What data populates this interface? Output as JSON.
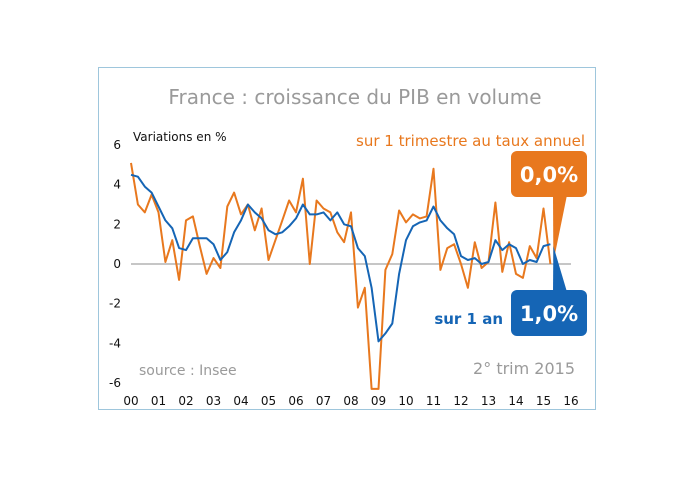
{
  "chart_data": {
    "type": "line",
    "title": "France : croissance du PIB en volume",
    "ylabel": "Variations en %",
    "ylim": [
      -6,
      6
    ],
    "yticks": [
      "6",
      "4",
      "2",
      "0",
      "-2",
      "-4",
      "-6"
    ],
    "xticks": [
      "00",
      "01",
      "02",
      "03",
      "04",
      "05",
      "06",
      "07",
      "08",
      "09",
      "10",
      "11",
      "12",
      "13",
      "14",
      "15",
      "16"
    ],
    "xlim": [
      2000,
      2016
    ],
    "grid": false,
    "series": [
      {
        "name": "sur 1 trimestre au taux annuel",
        "color": "#e8781e",
        "x": [
          2000.0,
          2000.25,
          2000.5,
          2000.75,
          2001.0,
          2001.25,
          2001.5,
          2001.75,
          2002.0,
          2002.25,
          2002.5,
          2002.75,
          2003.0,
          2003.25,
          2003.5,
          2003.75,
          2004.0,
          2004.25,
          2004.5,
          2004.75,
          2005.0,
          2005.25,
          2005.5,
          2005.75,
          2006.0,
          2006.25,
          2006.5,
          2006.75,
          2007.0,
          2007.25,
          2007.5,
          2007.75,
          2008.0,
          2008.25,
          2008.5,
          2008.75,
          2009.0,
          2009.25,
          2009.5,
          2009.75,
          2010.0,
          2010.25,
          2010.5,
          2010.75,
          2011.0,
          2011.25,
          2011.5,
          2011.75,
          2012.0,
          2012.25,
          2012.5,
          2012.75,
          2013.0,
          2013.25,
          2013.5,
          2013.75,
          2014.0,
          2014.25,
          2014.5,
          2014.75,
          2015.0,
          2015.25
        ],
        "values": [
          5.1,
          3.0,
          2.6,
          3.5,
          2.6,
          0.1,
          1.2,
          -0.8,
          2.2,
          2.4,
          0.9,
          -0.5,
          0.3,
          -0.2,
          2.9,
          3.6,
          2.5,
          3.0,
          1.7,
          2.8,
          0.2,
          1.2,
          2.2,
          3.2,
          2.6,
          4.3,
          0.0,
          3.2,
          2.8,
          2.6,
          1.6,
          1.1,
          2.6,
          -2.2,
          -1.2,
          -6.3,
          -6.3,
          -0.3,
          0.5,
          2.7,
          2.1,
          2.5,
          2.3,
          2.4,
          4.8,
          -0.3,
          0.8,
          1.0,
          0.0,
          -1.2,
          1.1,
          -0.2,
          0.1,
          3.1,
          -0.4,
          1.1,
          -0.5,
          -0.7,
          0.9,
          0.3,
          2.8,
          0.0
        ]
      },
      {
        "name": "sur 1 an",
        "color": "#1565b5",
        "x": [
          2000.0,
          2000.25,
          2000.5,
          2000.75,
          2001.0,
          2001.25,
          2001.5,
          2001.75,
          2002.0,
          2002.25,
          2002.5,
          2002.75,
          2003.0,
          2003.25,
          2003.5,
          2003.75,
          2004.0,
          2004.25,
          2004.5,
          2004.75,
          2005.0,
          2005.25,
          2005.5,
          2005.75,
          2006.0,
          2006.25,
          2006.5,
          2006.75,
          2007.0,
          2007.25,
          2007.5,
          2007.75,
          2008.0,
          2008.25,
          2008.5,
          2008.75,
          2009.0,
          2009.25,
          2009.5,
          2009.75,
          2010.0,
          2010.25,
          2010.5,
          2010.75,
          2011.0,
          2011.25,
          2011.5,
          2011.75,
          2012.0,
          2012.25,
          2012.5,
          2012.75,
          2013.0,
          2013.25,
          2013.5,
          2013.75,
          2014.0,
          2014.25,
          2014.5,
          2014.75,
          2015.0,
          2015.25
        ],
        "values": [
          4.5,
          4.4,
          3.9,
          3.6,
          2.9,
          2.2,
          1.8,
          0.8,
          0.7,
          1.3,
          1.3,
          1.3,
          1.0,
          0.2,
          0.6,
          1.6,
          2.2,
          3.0,
          2.6,
          2.3,
          1.7,
          1.5,
          1.6,
          1.9,
          2.3,
          3.0,
          2.5,
          2.5,
          2.6,
          2.2,
          2.6,
          2.0,
          1.9,
          0.8,
          0.4,
          -1.2,
          -3.9,
          -3.5,
          -3.0,
          -0.5,
          1.2,
          1.9,
          2.1,
          2.2,
          2.9,
          2.2,
          1.8,
          1.5,
          0.4,
          0.2,
          0.3,
          0.0,
          0.1,
          1.2,
          0.7,
          1.0,
          0.8,
          0.0,
          0.2,
          0.1,
          0.9,
          1.0
        ]
      }
    ],
    "callouts": [
      {
        "series": 0,
        "label": "0,0%",
        "color": "#e8781e"
      },
      {
        "series": 1,
        "label": "1,0%",
        "color": "#1565b5"
      }
    ],
    "annotations": {
      "source": "source : Insee",
      "period": "2° trim 2015"
    }
  }
}
